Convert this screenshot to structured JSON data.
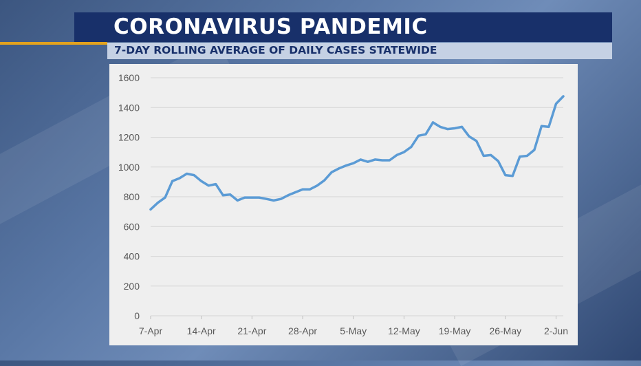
{
  "header": {
    "title": "CORONAVIRUS PANDEMIC",
    "subtitle": "7-DAY ROLLING AVERAGE OF DAILY CASES STATEWIDE"
  },
  "colors": {
    "title_bar": "#18306a",
    "subtitle_bar": "#c5d1e4",
    "accent_line": "#e2a21e",
    "series_line": "#5b9bd5",
    "panel": "#efefef",
    "grid": "#d6d6d6"
  },
  "chart_data": {
    "type": "line",
    "title": "",
    "xlabel": "",
    "ylabel": "",
    "ylim": [
      0,
      1600
    ],
    "yticks": [
      0,
      200,
      400,
      600,
      800,
      1000,
      1200,
      1400,
      1600
    ],
    "xtick_labels": [
      "7-Apr",
      "14-Apr",
      "21-Apr",
      "28-Apr",
      "5-May",
      "12-May",
      "19-May",
      "26-May",
      "2-Jun"
    ],
    "grid": true,
    "legend": "none",
    "x": [
      "7-Apr",
      "8-Apr",
      "9-Apr",
      "10-Apr",
      "11-Apr",
      "12-Apr",
      "13-Apr",
      "14-Apr",
      "15-Apr",
      "16-Apr",
      "17-Apr",
      "18-Apr",
      "19-Apr",
      "20-Apr",
      "21-Apr",
      "22-Apr",
      "23-Apr",
      "24-Apr",
      "25-Apr",
      "26-Apr",
      "27-Apr",
      "28-Apr",
      "29-Apr",
      "30-Apr",
      "1-May",
      "2-May",
      "3-May",
      "4-May",
      "5-May",
      "6-May",
      "7-May",
      "8-May",
      "9-May",
      "10-May",
      "11-May",
      "12-May",
      "13-May",
      "14-May",
      "15-May",
      "16-May",
      "17-May",
      "18-May",
      "19-May",
      "20-May",
      "21-May",
      "22-May",
      "23-May",
      "24-May",
      "25-May",
      "26-May",
      "27-May",
      "28-May",
      "29-May",
      "30-May",
      "31-May",
      "1-Jun",
      "2-Jun",
      "3-Jun"
    ],
    "series": [
      {
        "values": [
          715,
          760,
          795,
          905,
          925,
          955,
          945,
          905,
          875,
          885,
          810,
          815,
          775,
          795,
          795,
          795,
          785,
          775,
          785,
          810,
          830,
          850,
          850,
          875,
          910,
          965,
          990,
          1010,
          1025,
          1050,
          1035,
          1050,
          1045,
          1045,
          1080,
          1100,
          1135,
          1210,
          1220,
          1300,
          1270,
          1255,
          1260,
          1270,
          1205,
          1175,
          1075,
          1080,
          1040,
          945,
          940,
          1070,
          1075,
          1115,
          1275,
          1270,
          1425,
          1475
        ]
      }
    ]
  }
}
